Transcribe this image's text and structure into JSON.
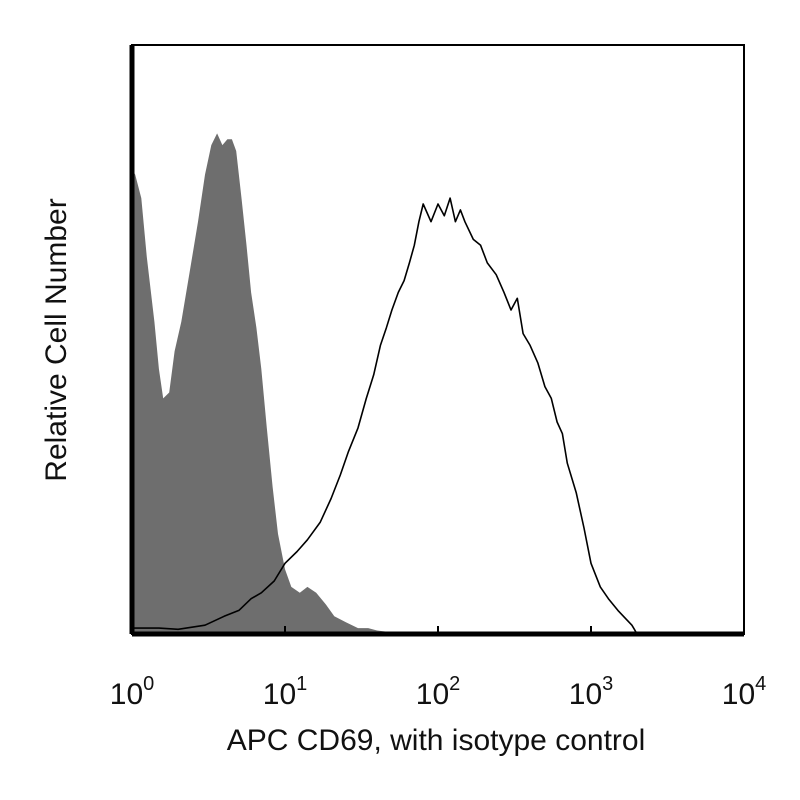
{
  "chart_data": {
    "type": "area",
    "xlabel": "APC CD69, with isotype control",
    "ylabel": "Relative Cell Number",
    "x_scale": "log",
    "xlim": [
      1,
      10000
    ],
    "ylim": [
      0,
      100
    ],
    "grid": false,
    "x_ticks": [
      {
        "base": "10",
        "exp": "0",
        "value": 1
      },
      {
        "base": "10",
        "exp": "1",
        "value": 10
      },
      {
        "base": "10",
        "exp": "2",
        "value": 100
      },
      {
        "base": "10",
        "exp": "3",
        "value": 1000
      },
      {
        "base": "10",
        "exp": "4",
        "value": 10000
      }
    ],
    "series": [
      {
        "style": "filled",
        "color": "#6e6e6e",
        "x": [
          1.0,
          1.05,
          1.15,
          1.25,
          1.4,
          1.5,
          1.6,
          1.75,
          1.9,
          2.1,
          2.4,
          2.7,
          3.0,
          3.3,
          3.6,
          3.9,
          4.2,
          4.5,
          4.8,
          5.2,
          5.6,
          6.0,
          6.5,
          7.0,
          7.6,
          8.3,
          9.0,
          10.0,
          11.0,
          12.5,
          14.0,
          16.0,
          18.5,
          21.0,
          25.0,
          30.0,
          35.0,
          40.0,
          50.0,
          60.0,
          70.0
        ],
        "y": [
          79,
          78,
          74,
          64,
          53,
          45,
          40,
          41,
          48,
          53,
          62,
          70,
          78,
          83,
          85,
          83,
          84,
          84,
          82,
          74,
          66,
          58,
          52,
          45,
          35,
          25,
          17,
          11,
          8,
          7,
          8,
          7,
          5,
          3,
          2,
          1,
          1,
          0.6,
          0.3,
          0.1,
          0
        ]
      },
      {
        "style": "outline",
        "color": "#000000",
        "x": [
          1.0,
          1.5,
          2.0,
          3.0,
          4.0,
          5.0,
          6.0,
          7.0,
          8.5,
          10.0,
          12.0,
          14.0,
          17.0,
          20.0,
          23.0,
          26.0,
          30.0,
          34.0,
          38.0,
          42.0,
          46.0,
          50.0,
          55.0,
          60.0,
          65.0,
          70.0,
          75.0,
          80.0,
          90.0,
          100.0,
          110.0,
          120.0,
          130.0,
          140.0,
          150.0,
          170.0,
          190.0,
          210.0,
          240.0,
          270.0,
          300.0,
          330.0,
          360.0,
          400.0,
          450.0,
          500.0,
          550.0,
          600.0,
          650.0,
          700.0,
          800.0,
          900.0,
          1000.0,
          1150.0,
          1300.0,
          1500.0,
          1700.0,
          1850.0,
          1950.0,
          2000.0
        ],
        "y": [
          1,
          1,
          0.8,
          1.5,
          3,
          4,
          6,
          7,
          9,
          12,
          14,
          16,
          19,
          23,
          27,
          31,
          35,
          40,
          44,
          49,
          52,
          55,
          58,
          60,
          63,
          66,
          70,
          73,
          70,
          73,
          71,
          74,
          70,
          72,
          70,
          67,
          66,
          63,
          61,
          58,
          55,
          57,
          51,
          49,
          46,
          42,
          40,
          36,
          34,
          29,
          24,
          18,
          12,
          8,
          6,
          4,
          2.5,
          1.5,
          0.5,
          0
        ]
      }
    ]
  }
}
